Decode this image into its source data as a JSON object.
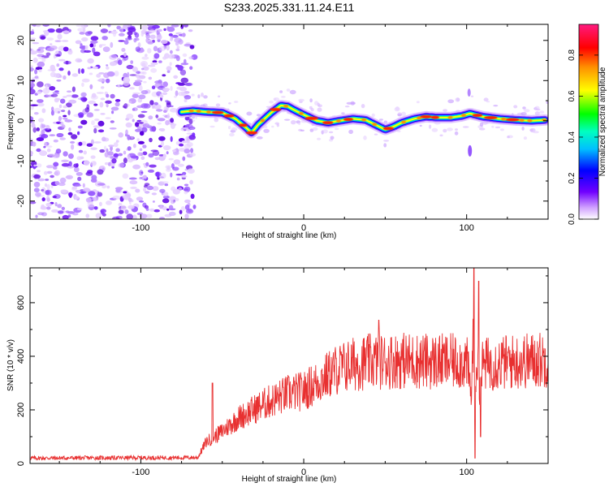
{
  "title": "S233.2025.331.11.24.E11",
  "chart_data": [
    {
      "type": "heatmap",
      "name": "spectrogram",
      "xlabel": "Height of straight line (km)",
      "ylabel": "Frequency (Hz)",
      "xlim": [
        -168,
        150
      ],
      "ylim": [
        -24.5,
        24
      ],
      "xticks": [
        -100,
        0,
        100
      ],
      "yticks": [
        -20,
        -10,
        0,
        10,
        20
      ],
      "colorbar": {
        "label": "Normalized spectral amplitude",
        "range": [
          0,
          0.95
        ],
        "ticks": [
          "0.0",
          "0.2",
          "0.4",
          "0.6",
          "0.8"
        ],
        "tick_values": [
          0,
          0.2,
          0.4,
          0.6,
          0.8
        ],
        "colors": [
          "#ffffff",
          "#c080ff",
          "#7000ff",
          "#0000ff",
          "#00ffff",
          "#00ff00",
          "#ffff00",
          "#ff8000",
          "#ff0000",
          "#ff2080"
        ]
      },
      "ridge": {
        "x": [
          -75,
          -68,
          -60,
          -50,
          -42,
          -36,
          -32,
          -28,
          -20,
          -14,
          -10,
          -5,
          0,
          8,
          15,
          22,
          30,
          38,
          45,
          50,
          55,
          60,
          68,
          75,
          82,
          90,
          97,
          102,
          105,
          110,
          120,
          130,
          140,
          148
        ],
        "y": [
          2.2,
          2.5,
          2.2,
          2.0,
          0.5,
          -1.5,
          -3.0,
          -1.0,
          2.0,
          3.8,
          3.6,
          2.5,
          1.5,
          0.0,
          -0.5,
          0.0,
          0.5,
          0.2,
          -1.2,
          -2.2,
          -1.5,
          -0.5,
          0.5,
          1.0,
          0.8,
          0.8,
          1.2,
          1.8,
          1.5,
          1.0,
          0.5,
          0.2,
          0.0,
          0.2
        ]
      },
      "noise_region": [
        -168,
        -70
      ]
    },
    {
      "type": "line",
      "name": "snr",
      "xlabel": "Height of straight line (km)",
      "ylabel": "SNR (10 * v/v)",
      "xlim": [
        -168,
        150
      ],
      "ylim": [
        0,
        730
      ],
      "xticks": [
        -100,
        0,
        100
      ],
      "yticks": [
        0,
        200,
        400,
        600
      ],
      "color": "#e83030",
      "envelope": {
        "x": [
          -168,
          -65,
          -60,
          -50,
          -40,
          -25,
          -10,
          0,
          10,
          20,
          30,
          40,
          60,
          80,
          100,
          103,
          104,
          105,
          106,
          108,
          110,
          130,
          150
        ],
        "y": [
          20,
          22,
          80,
          120,
          170,
          220,
          260,
          270,
          310,
          350,
          370,
          380,
          385,
          380,
          380,
          250,
          500,
          200,
          400,
          300,
          370,
          380,
          390
        ]
      },
      "spikes": [
        {
          "x": -56,
          "y": 300
        },
        {
          "x": 46,
          "y": 535
        },
        {
          "x": 104.5,
          "y": 730
        },
        {
          "x": 105.2,
          "y": 20
        },
        {
          "x": 107.5,
          "y": 680
        },
        {
          "x": 108.5,
          "y": 100
        }
      ]
    }
  ]
}
